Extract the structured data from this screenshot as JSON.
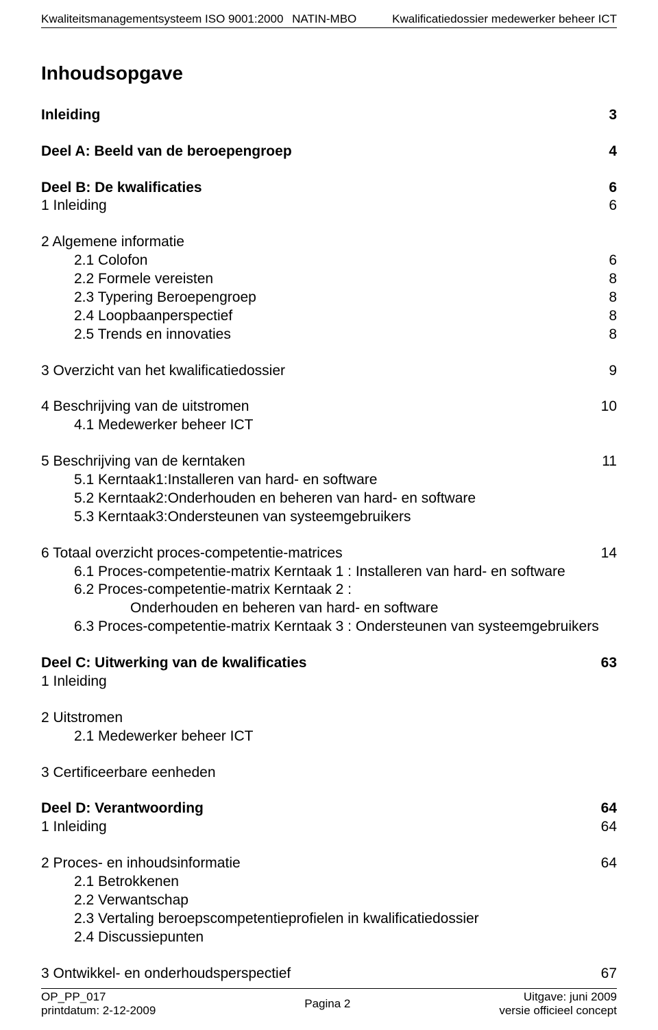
{
  "header": {
    "left": "Kwaliteitsmanagementsysteem ISO 9001:2000",
    "middle": "NATIN-MBO",
    "right": "Kwalificatiedossier medewerker beheer ICT"
  },
  "toc": {
    "title": "Inhoudsopgave",
    "entries": [
      {
        "bold": true,
        "label": "Inleiding",
        "page": "3",
        "spaceAfter": true
      },
      {
        "bold": true,
        "label": "Deel A: Beeld van de beroepengroep",
        "page": "4",
        "spaceAfter": true
      },
      {
        "bold": true,
        "label": "Deel B: De kwalificaties",
        "page": "6"
      },
      {
        "label": "1 Inleiding",
        "page": "6",
        "spaceAfter": true
      },
      {
        "label": "2 Algemene informatie"
      },
      {
        "indent": 1,
        "label": "2.1 Colofon",
        "page": "6"
      },
      {
        "indent": 1,
        "label": "2.2 Formele vereisten",
        "page": "8"
      },
      {
        "indent": 1,
        "label": "2.3 Typering Beroepengroep",
        "page": "8"
      },
      {
        "indent": 1,
        "label": "2.4 Loopbaanperspectief",
        "page": "8"
      },
      {
        "indent": 1,
        "label": "2.5 Trends en innovaties",
        "page": "8",
        "spaceAfter": true
      },
      {
        "label": "3 Overzicht van het kwalificatiedossier",
        "page": "9",
        "spaceAfter": true
      },
      {
        "label": "4 Beschrijving van de uitstromen",
        "page": "10"
      },
      {
        "indent": 1,
        "label": "4.1 Medewerker beheer ICT",
        "spaceAfter": true
      },
      {
        "label": "5 Beschrijving van de kerntaken",
        "page": "11"
      },
      {
        "indent": 1,
        "label": "5.1 Kerntaak1:Installeren van hard- en software"
      },
      {
        "indent": 1,
        "label": "5.2 Kerntaak2:Onderhouden en beheren van hard- en software"
      },
      {
        "indent": 1,
        "label": "5.3 Kerntaak3:Ondersteunen van systeemgebruikers",
        "spaceAfter": true
      },
      {
        "label": "6 Totaal overzicht proces-competentie-matrices",
        "page": "14"
      },
      {
        "indent": 1,
        "label": "6.1 Proces-competentie-matrix Kerntaak 1 : Installeren van hard- en software"
      },
      {
        "indent": 1,
        "label": "6.2 Proces-competentie-matrix Kerntaak 2 :"
      },
      {
        "indent": 2,
        "label": "Onderhouden en beheren van hard- en software"
      },
      {
        "indent": 1,
        "label": "6.3 Proces-competentie-matrix Kerntaak 3 : Ondersteunen van systeemgebruikers",
        "spaceAfter": true
      },
      {
        "bold": true,
        "label": "Deel C: Uitwerking van de kwalificaties",
        "page": "63"
      },
      {
        "label": "1 Inleiding",
        "spaceAfter": true
      },
      {
        "label": "2 Uitstromen"
      },
      {
        "indent": 1,
        "label": "2.1 Medewerker beheer ICT",
        "spaceAfter": true
      },
      {
        "label": "3 Certificeerbare eenheden",
        "spaceAfter": true
      },
      {
        "bold": true,
        "label": "Deel D: Verantwoording",
        "page": "64"
      },
      {
        "label": "1 Inleiding",
        "page": "64",
        "spaceAfter": true
      },
      {
        "label": "2 Proces- en inhoudsinformatie",
        "page": "64"
      },
      {
        "indent": 1,
        "label": "2.1 Betrokkenen"
      },
      {
        "indent": 1,
        "label": "2.2 Verwantschap"
      },
      {
        "indent": 1,
        "label": "2.3 Vertaling beroepscompetentieprofielen in kwalificatiedossier"
      },
      {
        "indent": 1,
        "label": "2.4 Discussiepunten",
        "spaceAfter": true
      },
      {
        "label": "3 Ontwikkel- en onderhoudsperspectief",
        "page": "67"
      }
    ]
  },
  "footer": {
    "left1": "OP_PP_017",
    "left2": "printdatum: 2-12-2009",
    "center": "Pagina 2",
    "right1": "Uitgave: juni 2009",
    "right2": "versie officieel concept"
  }
}
